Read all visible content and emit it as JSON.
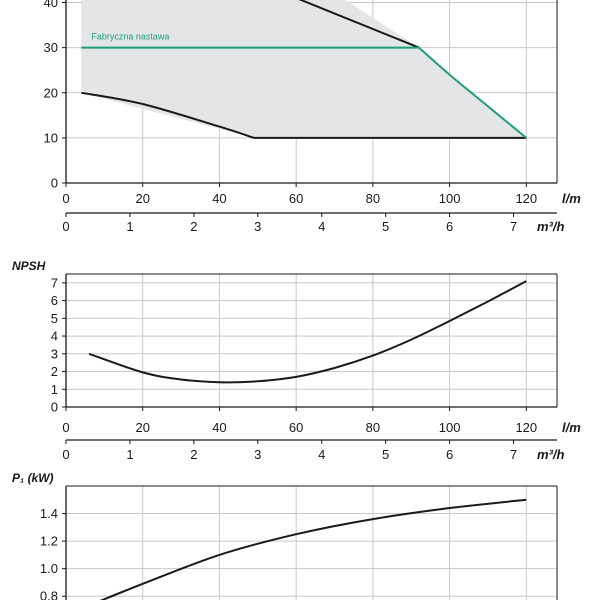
{
  "colors": {
    "region": "#e3e5e7",
    "curve": "#1a1a1a",
    "factory": "#1f9e7a",
    "grid": "#c8c8c8"
  },
  "chart_data": [
    {
      "id": "head",
      "type": "area",
      "xlabel": "l/m",
      "x2label": "m³/h",
      "ylabel": "",
      "xlim": [
        0,
        128
      ],
      "ylim": [
        0,
        41
      ],
      "xticks": [
        "0",
        "20",
        "40",
        "60",
        "80",
        "100",
        "120"
      ],
      "x2ticks": [
        "0",
        "1",
        "2",
        "3",
        "4",
        "5",
        "6",
        "7"
      ],
      "yticks": [
        "0",
        "10",
        "20",
        "30",
        "40"
      ],
      "grid": true,
      "region": [
        [
          4,
          20
        ],
        [
          49,
          10
        ],
        [
          120,
          10
        ],
        [
          92,
          30
        ],
        [
          72,
          41
        ],
        [
          4,
          41
        ]
      ],
      "series": [
        {
          "role": "max",
          "color": "#1a1a1a",
          "points": [
            [
              60,
              41
            ],
            [
              92,
              30
            ]
          ]
        },
        {
          "role": "min",
          "color": "#1a1a1a",
          "points": [
            [
              4,
              20
            ],
            [
              20,
              17.5
            ],
            [
              40,
              12.5
            ],
            [
              49,
              10
            ],
            [
              120,
              10
            ]
          ]
        },
        {
          "name": "Fabryczna nastawa",
          "color": "#1f9e7a",
          "points": [
            [
              4,
              30
            ],
            [
              92,
              30
            ],
            [
              100,
              24
            ],
            [
              110,
              17
            ],
            [
              120,
              10
            ]
          ]
        }
      ]
    },
    {
      "id": "npsh",
      "type": "line",
      "xlabel": "l/m",
      "x2label": "m³/h",
      "ylabel": "NPSH",
      "xlim": [
        0,
        128
      ],
      "ylim": [
        0,
        7.5
      ],
      "xticks": [
        "0",
        "20",
        "40",
        "60",
        "80",
        "100",
        "120"
      ],
      "x2ticks": [
        "0",
        "1",
        "2",
        "3",
        "4",
        "5",
        "6",
        "7"
      ],
      "yticks": [
        "0",
        "1",
        "2",
        "3",
        "4",
        "5",
        "6",
        "7"
      ],
      "grid": true,
      "series": [
        {
          "color": "#1a1a1a",
          "points": [
            [
              6,
              3.0
            ],
            [
              20,
              1.95
            ],
            [
              30,
              1.55
            ],
            [
              40,
              1.4
            ],
            [
              50,
              1.45
            ],
            [
              60,
              1.7
            ],
            [
              70,
              2.2
            ],
            [
              80,
              2.9
            ],
            [
              90,
              3.8
            ],
            [
              100,
              4.85
            ],
            [
              110,
              5.95
            ],
            [
              120,
              7.1
            ]
          ]
        }
      ]
    },
    {
      "id": "power",
      "type": "line",
      "xlabel": "",
      "ylabel": "P₁ (kW)",
      "xlim": [
        0,
        128
      ],
      "ylim": [
        0.7,
        1.6
      ],
      "yticks": [
        "0.8",
        "1.0",
        "1.2",
        "1.4"
      ],
      "grid": true,
      "series": [
        {
          "color": "#1a1a1a",
          "points": [
            [
              4,
              0.71
            ],
            [
              20,
              0.89
            ],
            [
              40,
              1.1
            ],
            [
              60,
              1.25
            ],
            [
              80,
              1.36
            ],
            [
              100,
              1.44
            ],
            [
              120,
              1.5
            ]
          ]
        }
      ]
    }
  ]
}
